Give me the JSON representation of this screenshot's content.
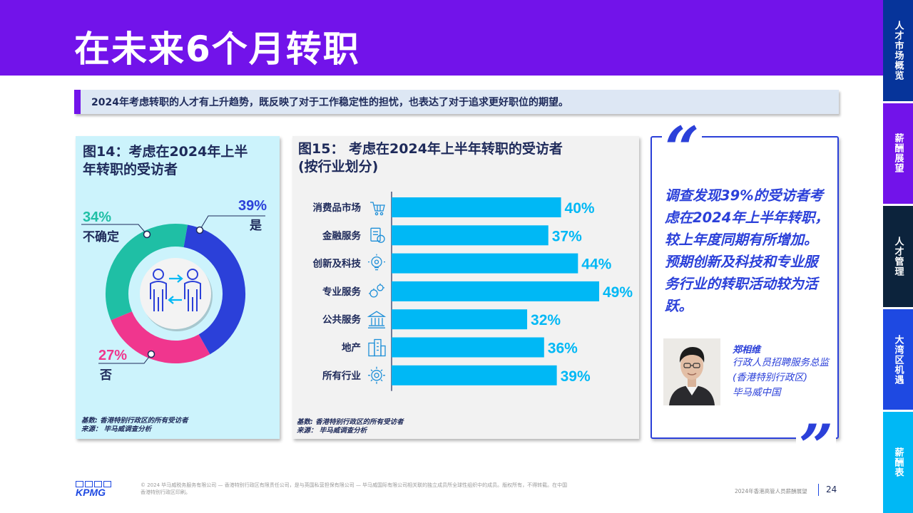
{
  "header": {
    "title": "在未来6个月转职"
  },
  "sidetabs": [
    {
      "label": "人才市场概览",
      "color": "#06349a"
    },
    {
      "label": "薪酬展望",
      "color": "#7213ea"
    },
    {
      "label": "人才管理",
      "color": "#0c233c"
    },
    {
      "label": "大湾区机遇",
      "color": "#1e49e2"
    },
    {
      "label": "薪酬表",
      "color": "#00b8f5"
    }
  ],
  "summary": "2024年考虑转职的人才有上升趋势，既反映了对于工作稳定性的担忧，也表达了对于追求更好职位的期望。",
  "fig14": {
    "title_line1": "图14：考虑在2024年上半",
    "title_line2": "年转职的受访者",
    "footnote_line1": "基数: 香港特别行政区的所有受访者",
    "footnote_line2": "来源： 毕马威调查分析",
    "icon": "people-exchange-icon"
  },
  "fig15": {
    "title_line1": "图15： 考虑在2024年上半年转职的受访者",
    "title_line2": "(按行业划分)",
    "footnote_line1": "基数: 香港特别行政区的所有受访者",
    "footnote_line2": "来源： 毕马威调查分析"
  },
  "chart_data": [
    {
      "type": "pie",
      "title": "图14：考虑在2024年上半年转职的受访者",
      "categories": [
        "是",
        "否",
        "不确定"
      ],
      "values": [
        39,
        27,
        34
      ],
      "value_labels": [
        "39%",
        "27%",
        "34%"
      ],
      "colors": [
        "#2b40d9",
        "#f0368e",
        "#1fbfa5"
      ]
    },
    {
      "type": "bar",
      "title": "图15： 考虑在2024年上半年转职的受访者 (按行业划分)",
      "categories": [
        "消费品市场",
        "金融服务",
        "创新及科技",
        "专业服务",
        "公共服务",
        "地产",
        "所有行业"
      ],
      "icons": [
        "shopping-cart-icon",
        "finance-document-icon",
        "lightbulb-gear-icon",
        "gears-icon",
        "government-building-icon",
        "buildings-icon",
        "industry-gear-icon"
      ],
      "values": [
        40,
        37,
        44,
        49,
        32,
        36,
        39
      ],
      "value_labels": [
        "40%",
        "37%",
        "44%",
        "49%",
        "32%",
        "36%",
        "39%"
      ],
      "bar_color": "#00b8f5",
      "label_color": "#00b8f5",
      "xlim": [
        0,
        50
      ],
      "grid": false
    }
  ],
  "quote": {
    "open_mark": "“",
    "close_mark": "”",
    "text": "调查发现39%的受访者考虑在2024年上半年转职，较上年度同期有所增加。预期创新及科技和专业服务行业的转职活动较为活跃。",
    "person_name": "郑相维",
    "person_title": "行政人员招聘服务总监 (香港特别行政区)",
    "person_org": "毕马威中国"
  },
  "footer": {
    "logo_text": "KPMG",
    "copyright": "© 2024 毕马威税务服务有限公司 — 香港特别行政区有限责任公司，是与英国私营担保有限公司 — 毕马威国际有限公司相关联的独立成员所全球性组织中的成员。版权所有，不得转载。在中国香港特别行政区印刷。",
    "report_name": "2024年香港高管人员薪酬展望",
    "page_number": "24"
  }
}
